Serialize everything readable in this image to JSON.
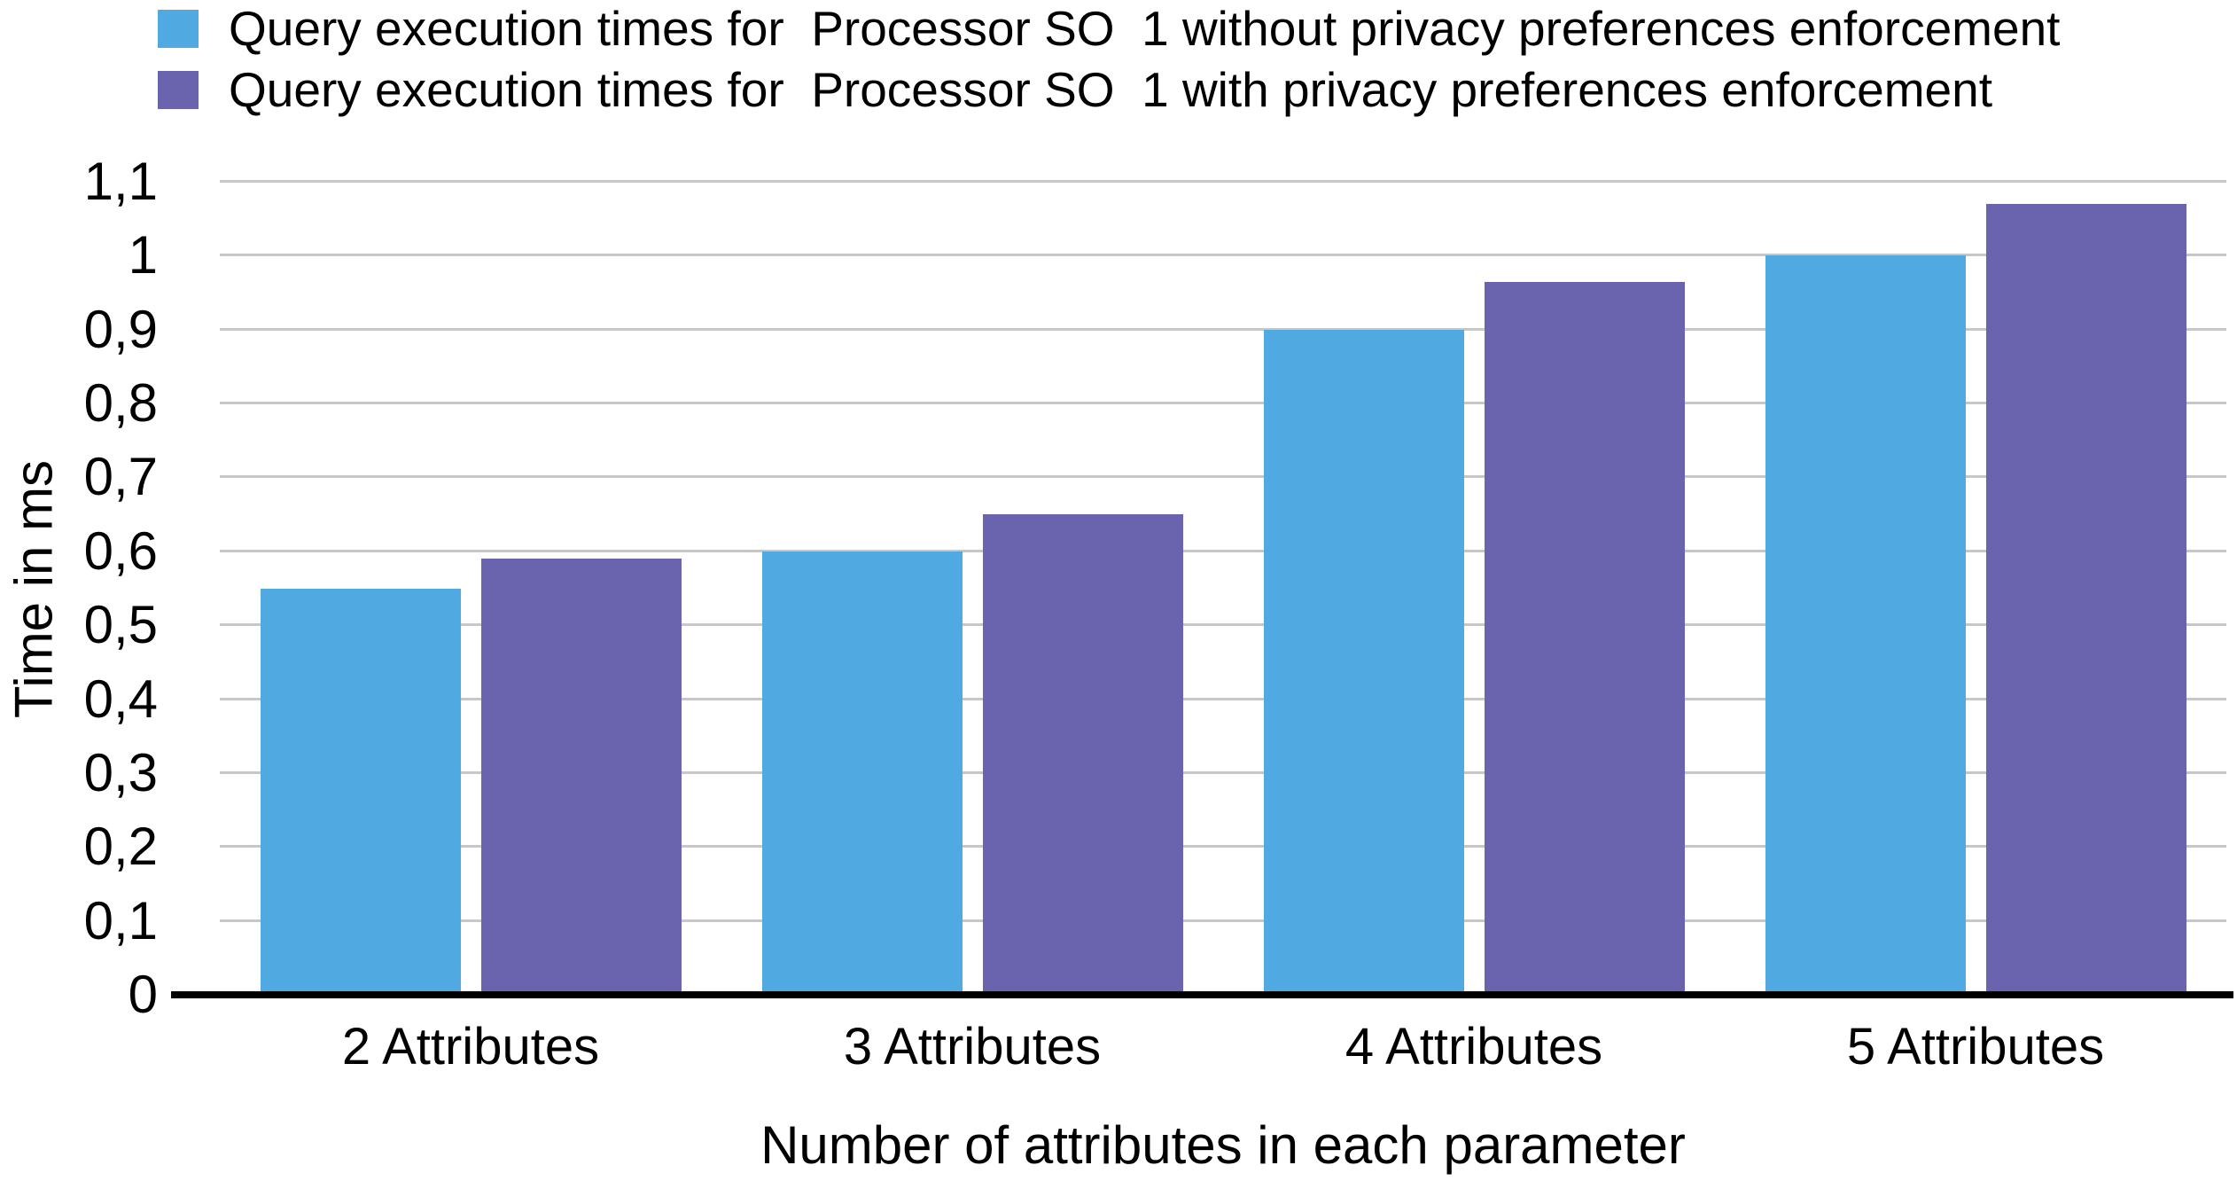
{
  "chart_data": {
    "type": "bar",
    "title": "",
    "categories": [
      "2 Attributes",
      "3 Attributes",
      "4 Attributes",
      "5 Attributes"
    ],
    "series": [
      {
        "name": "Query execution times for  Processor SO  1 without privacy preferences enforcement",
        "color": "#50A9E0",
        "values": [
          0.55,
          0.6,
          0.9,
          1.0
        ]
      },
      {
        "name": "Query execution times for  Processor SO  1 with privacy preferences enforcement",
        "color": "#6A63AD",
        "values": [
          0.59,
          0.65,
          0.965,
          1.07
        ]
      }
    ],
    "xlabel": "Number of attributes in each parameter",
    "ylabel": "Time in ms",
    "ylim": [
      0,
      1.1
    ],
    "yticks": [
      {
        "value": 0,
        "label": "0"
      },
      {
        "value": 0.1,
        "label": "0,1"
      },
      {
        "value": 0.2,
        "label": "0,2"
      },
      {
        "value": 0.3,
        "label": "0,3"
      },
      {
        "value": 0.4,
        "label": "0,4"
      },
      {
        "value": 0.5,
        "label": "0,5"
      },
      {
        "value": 0.6,
        "label": "0,6"
      },
      {
        "value": 0.7,
        "label": "0,7"
      },
      {
        "value": 0.8,
        "label": "0,8"
      },
      {
        "value": 0.9,
        "label": "0,9"
      },
      {
        "value": 1,
        "label": "1"
      },
      {
        "value": 1.1,
        "label": "1,1"
      }
    ],
    "decimal_separator": ",",
    "grid": "horizontal",
    "legend_position": "top-left",
    "colors": {
      "gridline": "#c7c7c7",
      "axis": "#000000",
      "background": "#ffffff",
      "text": "#000000"
    }
  }
}
